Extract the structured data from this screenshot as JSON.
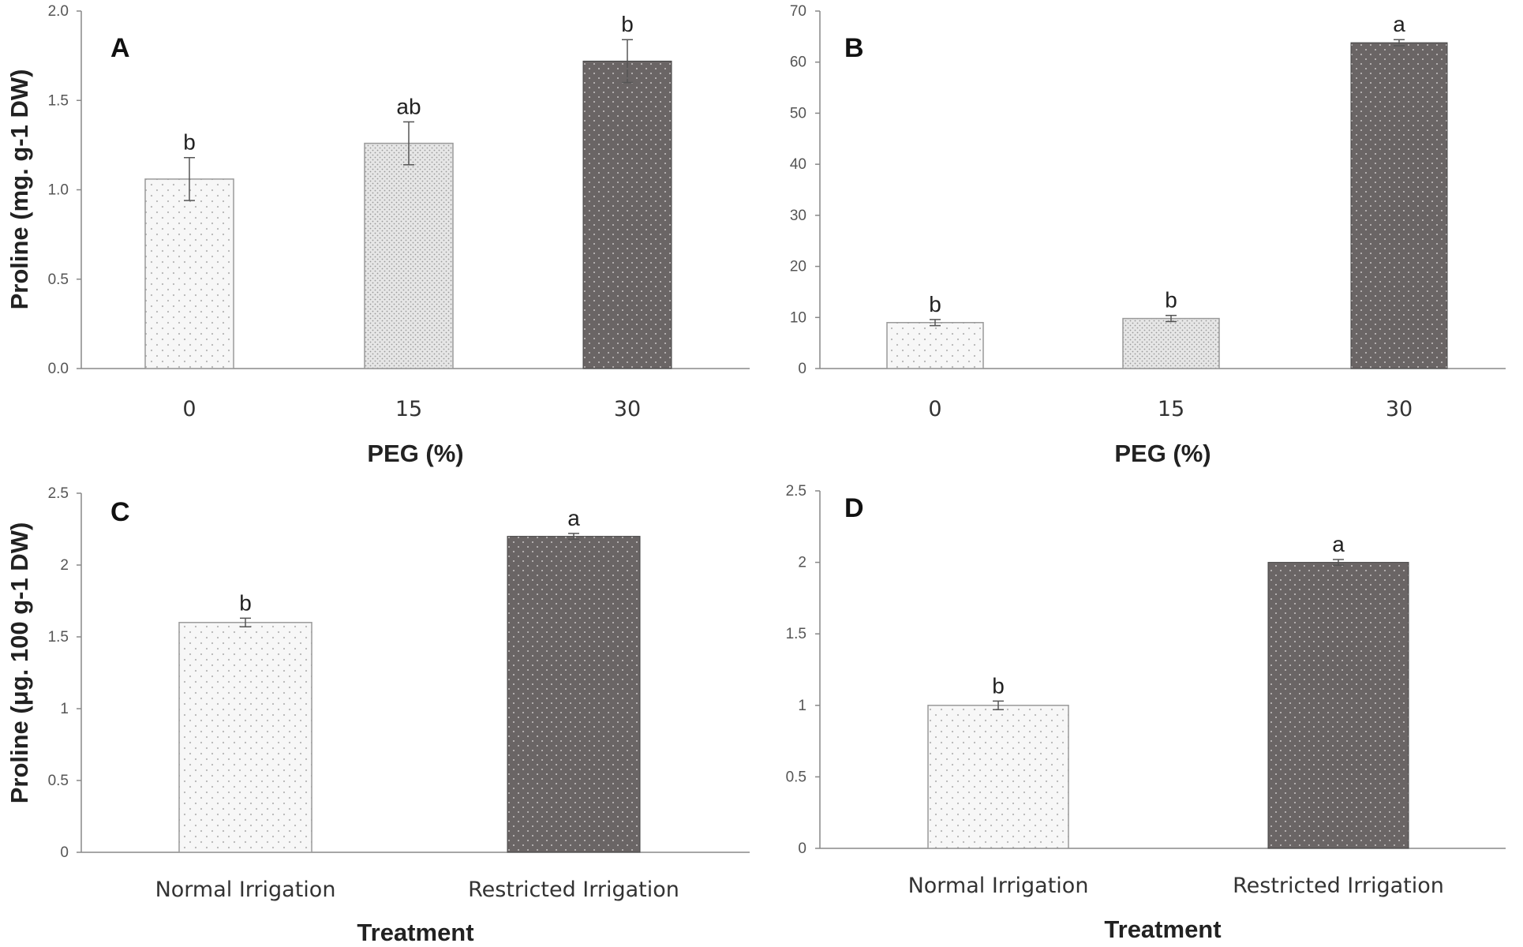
{
  "chart_data": [
    {
      "panel": "A",
      "type": "bar",
      "categories": [
        "0",
        "15",
        "30"
      ],
      "values": [
        1.06,
        1.26,
        1.72
      ],
      "errors": [
        0.12,
        0.12,
        0.12
      ],
      "significance": [
        "b",
        "ab",
        "b"
      ],
      "fills": [
        "light",
        "medium",
        "dark"
      ],
      "yticks": [
        "0.0",
        "0.5",
        "1.0",
        "1.5",
        "2.0"
      ],
      "ylim": [
        0,
        2.0
      ],
      "xlabel": "PEG (%)",
      "ylabel": "Proline (mg. g-1 DW)"
    },
    {
      "panel": "B",
      "type": "bar",
      "categories": [
        "0",
        "15",
        "30"
      ],
      "values": [
        9,
        9.8,
        63.8
      ],
      "errors": [
        0.6,
        0.6,
        0.6
      ],
      "significance": [
        "b",
        "b",
        "a"
      ],
      "fills": [
        "light",
        "medium",
        "dark"
      ],
      "yticks": [
        "0",
        "10",
        "20",
        "30",
        "40",
        "50",
        "60",
        "70"
      ],
      "ylim": [
        0,
        70
      ],
      "xlabel": "PEG (%)",
      "ylabel": ""
    },
    {
      "panel": "C",
      "type": "bar",
      "categories": [
        "Normal Irrigation",
        "Restricted Irrigation"
      ],
      "values": [
        1.6,
        2.2
      ],
      "errors": [
        0.03,
        0.02
      ],
      "significance": [
        "b",
        "a"
      ],
      "fills": [
        "light",
        "dark"
      ],
      "yticks": [
        "0",
        "0.5",
        "1",
        "1.5",
        "2",
        "2.5"
      ],
      "ylim": [
        0,
        2.5
      ],
      "xlabel": "Treatment",
      "ylabel": "Proline (μg. 100 g-1 DW)"
    },
    {
      "panel": "D",
      "type": "bar",
      "categories": [
        "Normal Irrigation",
        "Restricted Irrigation"
      ],
      "values": [
        1.0,
        2.0
      ],
      "errors": [
        0.03,
        0.02
      ],
      "significance": [
        "b",
        "a"
      ],
      "fills": [
        "light",
        "dark"
      ],
      "yticks": [
        "0",
        "0.5",
        "1",
        "1.5",
        "2",
        "2.5"
      ],
      "ylim": [
        0,
        2.5
      ],
      "xlabel": "Treatment",
      "ylabel": ""
    }
  ],
  "colors": {
    "light": "#f7f7f7",
    "medium": "#dcdcdc",
    "dark": "#6a6565",
    "dots_light": "#b5b5b5",
    "dots_medium": "#8f8f8f",
    "dots_dark": "#c8c4c4"
  }
}
